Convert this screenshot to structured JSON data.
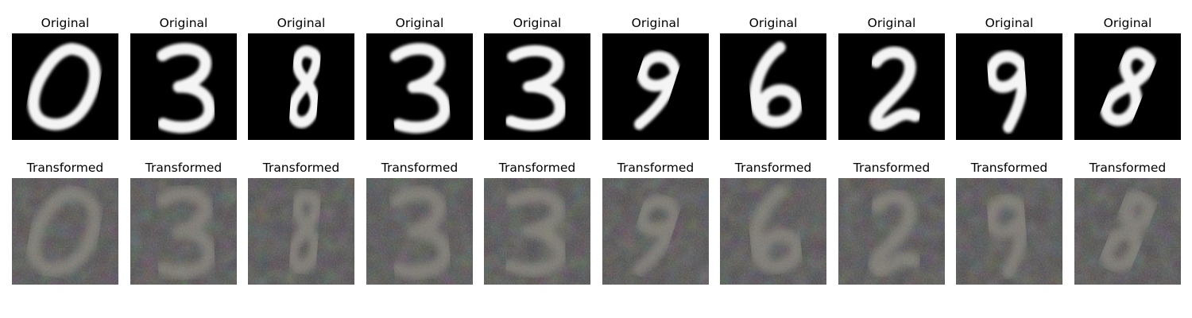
{
  "figure": {
    "rows": [
      {
        "label": "Original",
        "style": "mnist",
        "background_color": "#000000",
        "stroke_color": "#f4f4f4",
        "digits": [
          "0",
          "3",
          "8",
          "3",
          "3",
          "9",
          "6",
          "2",
          "9",
          "8"
        ]
      },
      {
        "label": "Transformed",
        "style": "svhn",
        "background_color": "#4a4846",
        "stroke_color": "#8d8a7e",
        "digits": [
          "0",
          "3",
          "8",
          "3",
          "3",
          "9",
          "6",
          "2",
          "9",
          "8"
        ]
      }
    ]
  }
}
